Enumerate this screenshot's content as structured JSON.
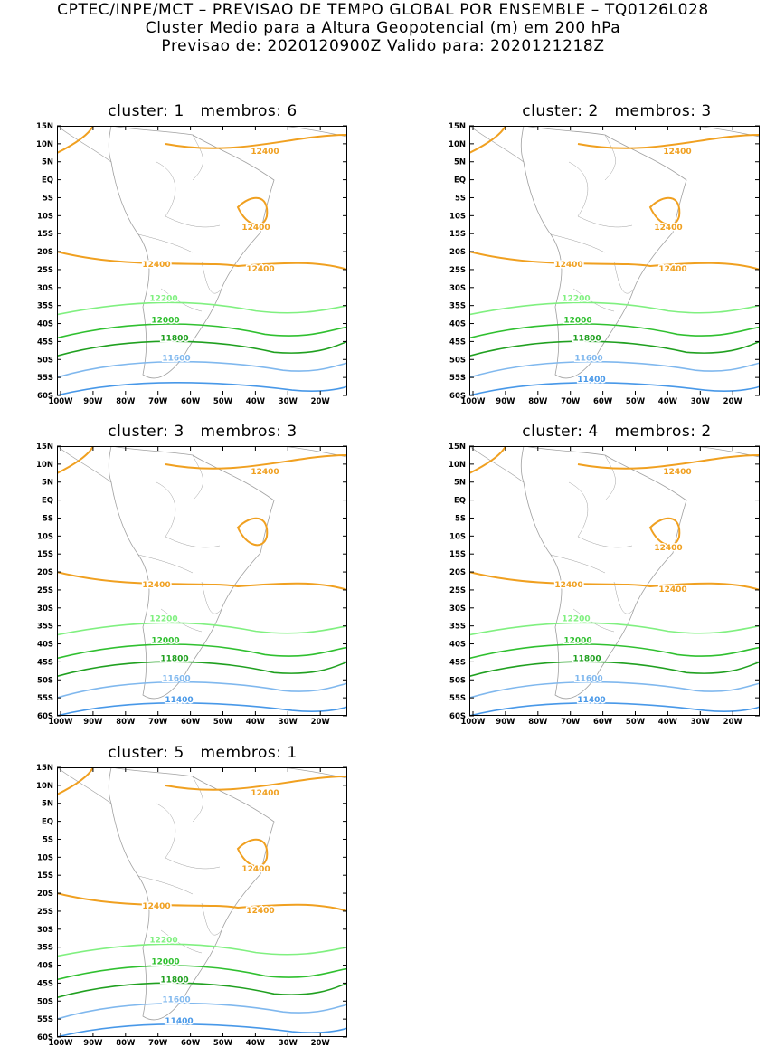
{
  "header": {
    "line1": "CPTEC/INPE/MCT – PREVISAO DE TEMPO GLOBAL POR ENSEMBLE – TQ0126L028",
    "line2": "Cluster Medio para a Altura Geopotencial (m) em 200 hPa",
    "line3": "Previsao de: 2020120900Z    Valido para: 2020121218Z"
  },
  "axes": {
    "lat_labels": [
      "15N",
      "10N",
      "5N",
      "EQ",
      "5S",
      "10S",
      "15S",
      "20S",
      "25S",
      "30S",
      "35S",
      "40S",
      "45S",
      "50S",
      "55S",
      "60S"
    ],
    "lon_labels": [
      "100W",
      "90W",
      "80W",
      "70W",
      "60W",
      "50W",
      "40W",
      "30W",
      "20W"
    ]
  },
  "colors": {
    "c12400": "#f0a020",
    "c12200": "#80f080",
    "c12000": "#30c030",
    "c11800": "#20a020",
    "c11600": "#80b8ee",
    "c11400": "#4898e8",
    "c11200": "#2070d8",
    "land": "#a0a0a0"
  },
  "clusters": [
    {
      "title": "cluster:",
      "number": "1",
      "members_label": "membros:",
      "members": "6",
      "labels": [
        "12400",
        "12400",
        "12400",
        "12400",
        "12200",
        "12000",
        "11800",
        "11600"
      ]
    },
    {
      "title": "cluster:",
      "number": "2",
      "members_label": "membros:",
      "members": "3",
      "labels": [
        "12400",
        "12400",
        "12400",
        "12400",
        "12200",
        "12000",
        "11800",
        "11600",
        "11400"
      ]
    },
    {
      "title": "cluster:",
      "number": "3",
      "members_label": "membros:",
      "members": "3",
      "labels": [
        "12400",
        "12400",
        "12200",
        "12000",
        "11800",
        "11600",
        "11400"
      ]
    },
    {
      "title": "cluster:",
      "number": "4",
      "members_label": "membros:",
      "members": "2",
      "labels": [
        "12400",
        "12400",
        "12400",
        "12400",
        "12200",
        "12000",
        "11800",
        "11600",
        "11400"
      ]
    },
    {
      "title": "cluster:",
      "number": "5",
      "members_label": "membros:",
      "members": "1",
      "labels": [
        "12400",
        "12400",
        "12400",
        "12400",
        "12200",
        "12000",
        "11800",
        "11600",
        "11400"
      ]
    }
  ]
}
